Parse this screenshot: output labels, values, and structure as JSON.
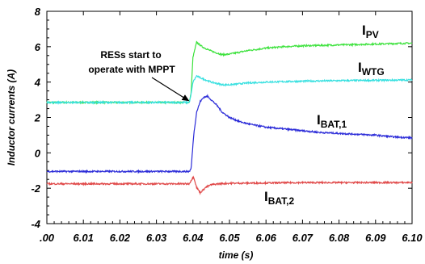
{
  "chart_data": {
    "type": "line",
    "title": "",
    "xlabel": "time (s)",
    "ylabel": "Inductor currents (A)",
    "xlim": [
      6.0,
      6.1
    ],
    "ylim": [
      -4,
      8
    ],
    "x_ticks": [
      ".00",
      "6.01",
      "6.02",
      "6.03",
      "6.04",
      "6.05",
      "6.06",
      "6.07",
      "6.08",
      "6.09",
      "6.10"
    ],
    "y_ticks": [
      "8",
      "6",
      "4",
      "2",
      "0",
      "-2",
      "-4"
    ],
    "grid": false,
    "series": [
      {
        "name": "I_PV",
        "label_main": "I",
        "label_sub": "PV",
        "color": "#3ee23e",
        "x": [
          6.0,
          6.039,
          6.0395,
          6.04,
          6.041,
          6.0425,
          6.045,
          6.048,
          6.05,
          6.055,
          6.06,
          6.065,
          6.07,
          6.08,
          6.09,
          6.1
        ],
        "y": [
          2.85,
          2.85,
          3.4,
          5.4,
          6.25,
          6.0,
          5.75,
          5.55,
          5.58,
          5.78,
          5.92,
          6.0,
          6.05,
          6.1,
          6.15,
          6.2
        ]
      },
      {
        "name": "I_WTG",
        "label_main": "I",
        "label_sub": "WTG",
        "color": "#38e0e0",
        "x": [
          6.0,
          6.039,
          6.0395,
          6.04,
          6.041,
          6.0425,
          6.045,
          6.048,
          6.05,
          6.055,
          6.06,
          6.07,
          6.08,
          6.09,
          6.1
        ],
        "y": [
          2.85,
          2.85,
          3.3,
          4.0,
          4.35,
          4.2,
          4.0,
          3.85,
          3.85,
          3.95,
          4.0,
          4.05,
          4.08,
          4.1,
          4.12
        ]
      },
      {
        "name": "I_BAT,1",
        "label_main": "I",
        "label_sub": "BAT,1",
        "color": "#2b2bd8",
        "x": [
          6.0,
          6.039,
          6.0395,
          6.0402,
          6.041,
          6.042,
          6.043,
          6.044,
          6.045,
          6.0465,
          6.048,
          6.05,
          6.053,
          6.056,
          6.06,
          6.065,
          6.07,
          6.075,
          6.08,
          6.085,
          6.09,
          6.095,
          6.1
        ],
        "y": [
          -1.05,
          -1.05,
          -0.9,
          1.0,
          2.3,
          2.9,
          3.15,
          3.2,
          3.0,
          2.7,
          2.3,
          2.0,
          1.75,
          1.6,
          1.45,
          1.35,
          1.25,
          1.15,
          1.1,
          1.05,
          1.0,
          0.9,
          0.85
        ]
      },
      {
        "name": "I_BAT,2",
        "label_main": "I",
        "label_sub": "BAT,2",
        "color": "#e04848",
        "x": [
          6.0,
          6.039,
          6.0395,
          6.0402,
          6.041,
          6.042,
          6.0435,
          6.045,
          6.047,
          6.05,
          6.06,
          6.07,
          6.08,
          6.09,
          6.1
        ],
        "y": [
          -1.75,
          -1.75,
          -1.55,
          -1.35,
          -1.95,
          -2.25,
          -1.95,
          -1.8,
          -1.75,
          -1.72,
          -1.7,
          -1.68,
          -1.68,
          -1.68,
          -1.68
        ]
      }
    ],
    "annotation": {
      "lines": [
        "RESs start to",
        "operate with MPPT"
      ],
      "point_x": 6.0395,
      "point_y": 2.9
    }
  }
}
